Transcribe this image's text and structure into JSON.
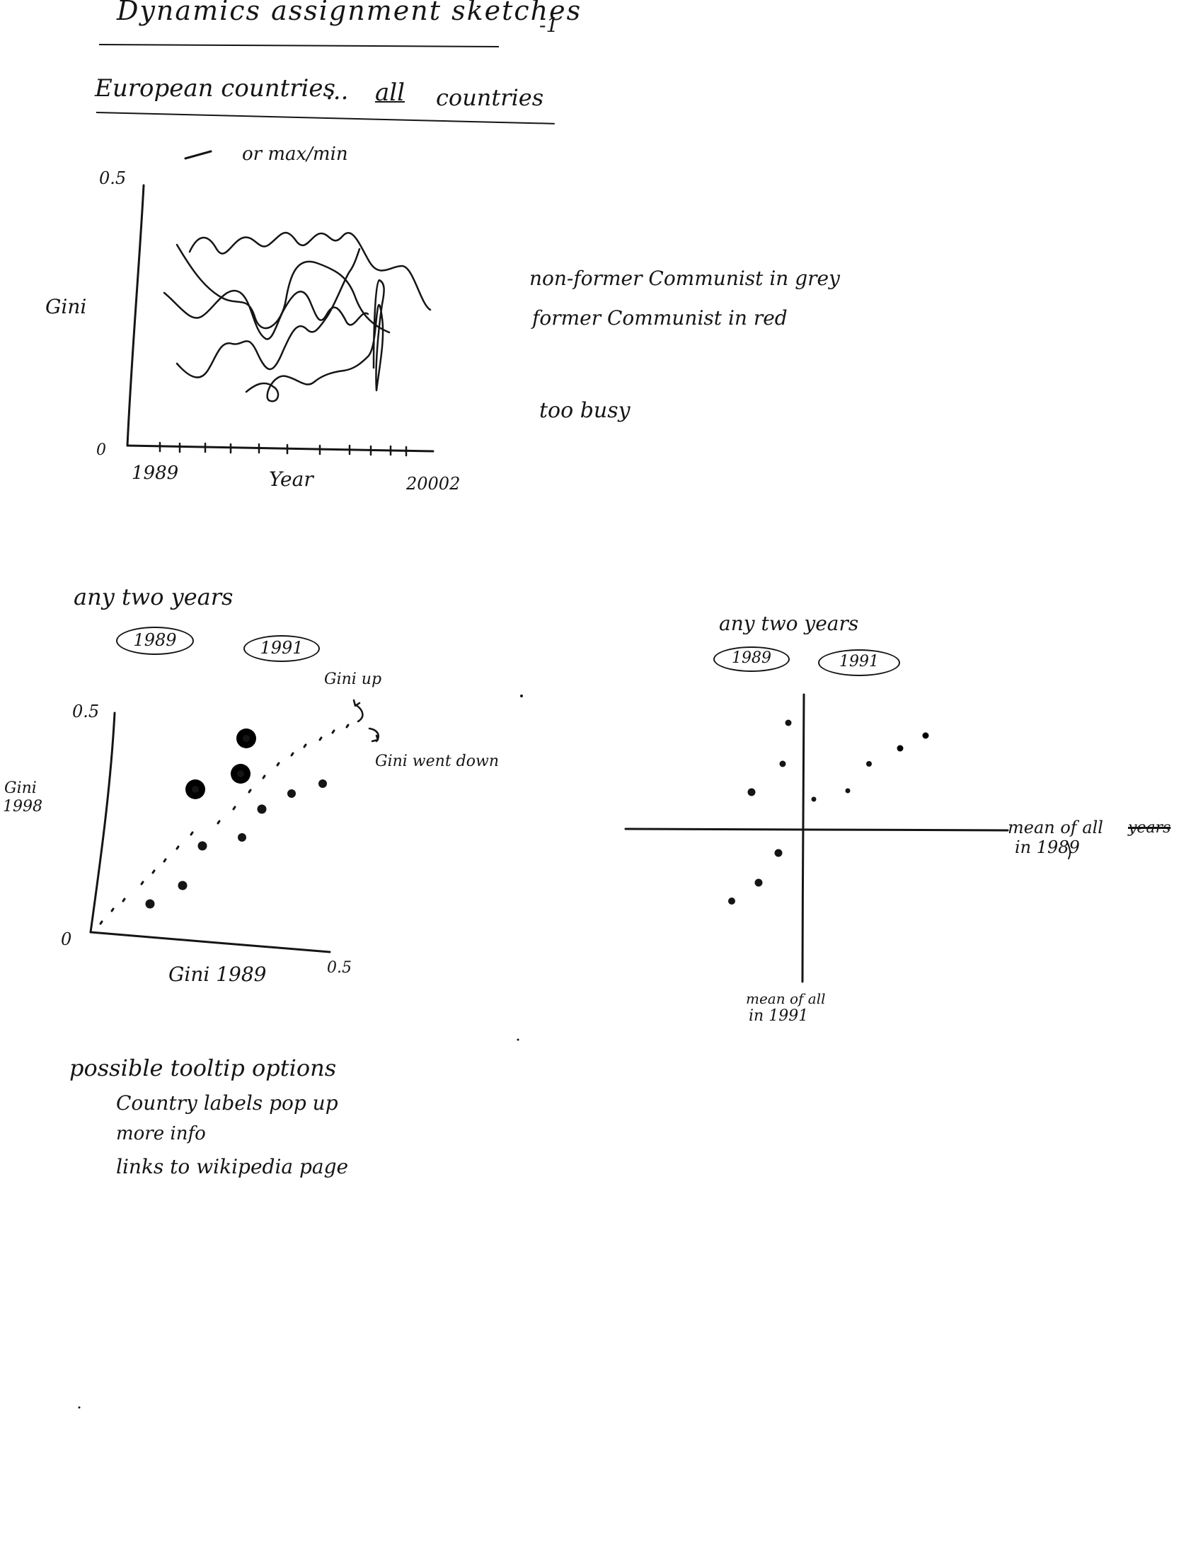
{
  "header": {
    "title": "Dynamics assignment sketches",
    "page_number": "-1"
  },
  "subtitle": {
    "european": "European countries",
    "ellipsis": "...",
    "all": "all",
    "countries": "countries"
  },
  "sketch1": {
    "note_top": "or max/min",
    "y_label": "Gini",
    "y_max_tick": "0.5",
    "y_min_tick": "0",
    "x_start": "1989",
    "x_label": "Year",
    "x_end": "20002",
    "note_line1": "non-former Communist in grey",
    "note_line2": "former Communist in red",
    "verdict": "too busy"
  },
  "sketch2": {
    "heading": "any two years",
    "year_a": "1989",
    "year_b": "1991",
    "y_label_word": "Gini",
    "y_label_year": "1998",
    "y_max_tick": "0.5",
    "origin_tick": "0",
    "x_label": "Gini 1989",
    "x_max_tick": "0.5",
    "annot_up": "Gini up",
    "annot_down": "Gini went down"
  },
  "sketch3": {
    "heading": "any two years",
    "year_a": "1989",
    "year_b": "1991",
    "h_label_line1": "mean of all",
    "h_label_struck": "years",
    "h_label_line2": "in 1989",
    "v_label_line1": "mean of all",
    "v_label_line2": "in 1991"
  },
  "tooltip_notes": {
    "heading": "possible tooltip options",
    "items": [
      "Country labels pop up",
      "more info",
      "links to wikipedia page"
    ]
  }
}
